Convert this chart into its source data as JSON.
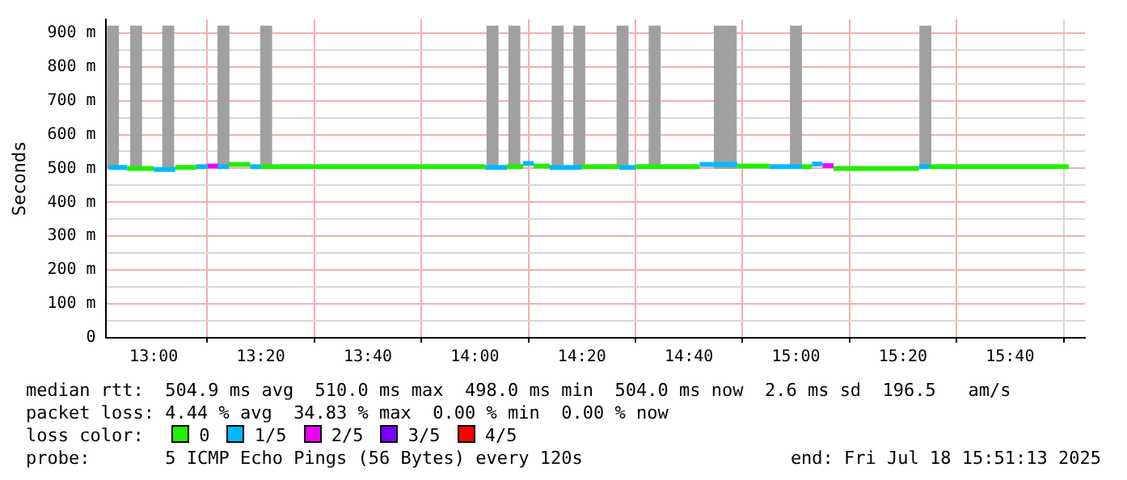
{
  "chart_data": {
    "type": "line",
    "ylabel": "Seconds",
    "xlim": [
      12.85,
      15.9
    ],
    "ylim": [
      0,
      940
    ],
    "xticks": [
      {
        "value": 13,
        "label": "13:00"
      },
      {
        "value": 13.3333,
        "label": "13:20"
      },
      {
        "value": 13.6667,
        "label": "13:40"
      },
      {
        "value": 14,
        "label": "14:00"
      },
      {
        "value": 14.3333,
        "label": "14:20"
      },
      {
        "value": 14.6667,
        "label": "14:40"
      },
      {
        "value": 15,
        "label": "15:00"
      },
      {
        "value": 15.3333,
        "label": "15:20"
      },
      {
        "value": 15.6667,
        "label": "15:40"
      }
    ],
    "yticks": [
      0,
      {
        "value": 50,
        "label": null
      },
      {
        "value": 100,
        "label": "100 m"
      },
      {
        "value": 150,
        "label": null
      },
      {
        "value": 200,
        "label": "200 m"
      },
      {
        "value": 250,
        "label": null
      },
      {
        "value": 300,
        "label": "300 m"
      },
      {
        "value": 350,
        "label": null
      },
      {
        "value": 400,
        "label": "400 m"
      },
      {
        "value": 450,
        "label": null
      },
      {
        "value": 500,
        "label": "500 m"
      },
      {
        "value": 550,
        "label": null
      },
      {
        "value": 600,
        "label": "600 m"
      },
      {
        "value": 650,
        "label": null
      },
      {
        "value": 700,
        "label": "700 m"
      },
      {
        "value": 750,
        "label": null
      },
      {
        "value": 800,
        "label": "800 m"
      },
      {
        "value": 850,
        "label": null
      },
      {
        "value": 900,
        "label": "900 m"
      }
    ],
    "grid": true,
    "legend": "bottom",
    "series": [
      {
        "type": "bar",
        "color": "#a0a0a0",
        "x": [
          12.873,
          12.945,
          13.045,
          13.217,
          13.35,
          14.055,
          14.123,
          14.258,
          14.325,
          14.46,
          14.56,
          14.763,
          14.797,
          15,
          15.403
        ],
        "base": [
          500,
          500,
          500,
          500,
          500,
          500,
          500,
          500,
          500,
          500,
          500,
          500,
          500,
          500,
          500
        ],
        "values": [
          420,
          420,
          420,
          420,
          420,
          420,
          420,
          420,
          420,
          420,
          420,
          420,
          420,
          420,
          420
        ]
      },
      {
        "color": "#00b8ff",
        "x": [
          12.86,
          12.917
        ],
        "values": [
          503,
          503
        ]
      },
      {
        "color": "#22ee00",
        "x": [
          12.917,
          13
        ],
        "values": [
          500,
          500
        ]
      },
      {
        "color": "#00b8ff",
        "x": [
          13,
          13.067
        ],
        "values": [
          497,
          497
        ]
      },
      {
        "color": "#22ee00",
        "x": [
          13.067,
          13.133
        ],
        "values": [
          503,
          503
        ]
      },
      {
        "color": "#00b8ff",
        "x": [
          13.133,
          13.167
        ],
        "values": [
          505,
          505
        ]
      },
      {
        "color": "#ee00ff",
        "x": [
          13.167,
          13.2
        ],
        "values": [
          507,
          507
        ]
      },
      {
        "color": "#00b8ff",
        "x": [
          13.2,
          13.233
        ],
        "values": [
          505,
          505
        ]
      },
      {
        "color": "#22ee00",
        "x": [
          13.233,
          13.3
        ],
        "values": [
          512,
          512
        ]
      },
      {
        "color": "#00b8ff",
        "x": [
          13.3,
          13.333
        ],
        "values": [
          505,
          505
        ]
      },
      {
        "color": "#22ee00",
        "x": [
          13.333,
          14.033
        ],
        "values": [
          505,
          505
        ]
      },
      {
        "color": "#00b8ff",
        "x": [
          14.033,
          14.1
        ],
        "values": [
          503,
          503
        ]
      },
      {
        "color": "#22ee00",
        "x": [
          14.1,
          14.15
        ],
        "values": [
          505,
          505
        ]
      },
      {
        "color": "#00b8ff",
        "x": [
          14.15,
          14.183
        ],
        "values": [
          515,
          515
        ]
      },
      {
        "color": "#22ee00",
        "x": [
          14.183,
          14.233
        ],
        "values": [
          507,
          507
        ]
      },
      {
        "color": "#00b8ff",
        "x": [
          14.233,
          14.333
        ],
        "values": [
          503,
          503
        ]
      },
      {
        "color": "#22ee00",
        "x": [
          14.333,
          14.45
        ],
        "values": [
          505,
          505
        ]
      },
      {
        "color": "#00b8ff",
        "x": [
          14.45,
          14.5
        ],
        "values": [
          503,
          503
        ]
      },
      {
        "color": "#22ee00",
        "x": [
          14.5,
          14.7
        ],
        "values": [
          505,
          505
        ]
      },
      {
        "color": "#00b8ff",
        "x": [
          14.7,
          14.817
        ],
        "values": [
          512,
          512
        ]
      },
      {
        "color": "#22ee00",
        "x": [
          14.817,
          14.917
        ],
        "values": [
          507,
          507
        ]
      },
      {
        "color": "#00b8ff",
        "x": [
          14.917,
          15.017
        ],
        "values": [
          505,
          505
        ]
      },
      {
        "color": "#22ee00",
        "x": [
          15.017,
          15.05
        ],
        "values": [
          505,
          505
        ]
      },
      {
        "color": "#00b8ff",
        "x": [
          15.05,
          15.083
        ],
        "values": [
          513,
          513
        ]
      },
      {
        "color": "#ee00ff",
        "x": [
          15.083,
          15.117
        ],
        "values": [
          508,
          508
        ]
      },
      {
        "color": "#22ee00",
        "x": [
          15.117,
          15.383
        ],
        "values": [
          500,
          500
        ]
      },
      {
        "color": "#00b8ff",
        "x": [
          15.383,
          15.417
        ],
        "values": [
          505,
          505
        ]
      },
      {
        "color": "#22ee00",
        "x": [
          15.417,
          15.85
        ],
        "values": [
          505,
          505
        ]
      },
      {
        "name": "0",
        "color": "#22ee00"
      },
      {
        "name": "1/5",
        "color": "#00b8ff"
      },
      {
        "name": "2/5",
        "color": "#ee00ff"
      },
      {
        "name": "3/5",
        "color": "#7700ff"
      },
      {
        "name": "4/5",
        "color": "#ff0000"
      }
    ],
    "annotations": [
      "median rtt:  504.9 ms avg  510.0 ms max  498.0 ms min  504.0 ms now  2.6 ms sd  196.5   am/s",
      "packet loss: 4.44 % avg  34.83 % max  0.00 % min  0.00 % now",
      "loss color:",
      "probe:       5 ICMP Echo Pings (56 Bytes) every 120s",
      "end: Fri Jul 18 15:51:13 2025"
    ]
  }
}
